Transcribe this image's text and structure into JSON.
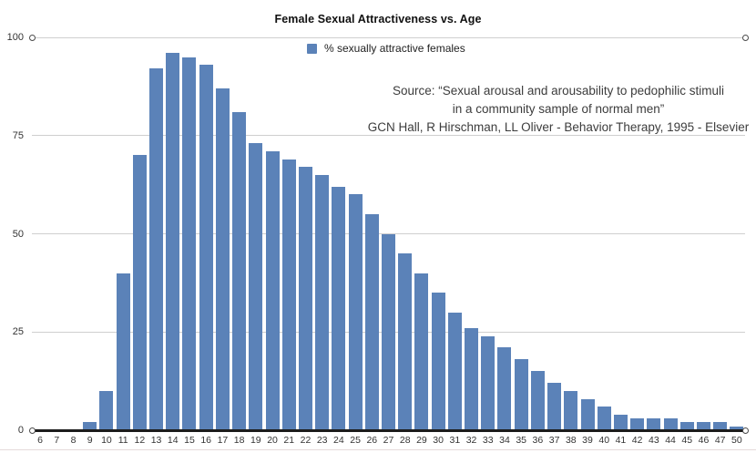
{
  "chart_data": {
    "type": "bar",
    "title": "Female Sexual Attractiveness vs. Age",
    "legend": "% sexually attractive females",
    "categories": [
      "6",
      "7",
      "8",
      "9",
      "10",
      "11",
      "12",
      "13",
      "14",
      "15",
      "16",
      "17",
      "18",
      "19",
      "20",
      "21",
      "22",
      "23",
      "24",
      "25",
      "26",
      "27",
      "28",
      "29",
      "30",
      "31",
      "32",
      "33",
      "34",
      "35",
      "36",
      "37",
      "38",
      "39",
      "40",
      "41",
      "42",
      "43",
      "44",
      "45",
      "46",
      "47",
      "50"
    ],
    "values": [
      0,
      0,
      0,
      2,
      10,
      40,
      70,
      92,
      96,
      95,
      93,
      87,
      81,
      73,
      71,
      69,
      67,
      65,
      62,
      60,
      55,
      50,
      45,
      40,
      35,
      30,
      26,
      24,
      21,
      18,
      15,
      12,
      10,
      8,
      6,
      4,
      3,
      3,
      3,
      2,
      2,
      2,
      1
    ],
    "xlabel": "",
    "ylabel": "",
    "ylim": [
      0,
      100
    ],
    "yticks": [
      0,
      25,
      50,
      75,
      100
    ],
    "grid": true,
    "legend_position": "top-center",
    "bar_color": "#5b82b8",
    "gridline_color": "#cfcfcf",
    "axis_color": "#1c1c1c"
  },
  "source": {
    "line1": "Source: “Sexual arousal and arousability to pedophilic stimuli",
    "line2": "in a community sample of normal men”",
    "line3": "GCN Hall, R Hirschman, LL Oliver - Behavior Therapy, 1995 - Elsevier"
  }
}
